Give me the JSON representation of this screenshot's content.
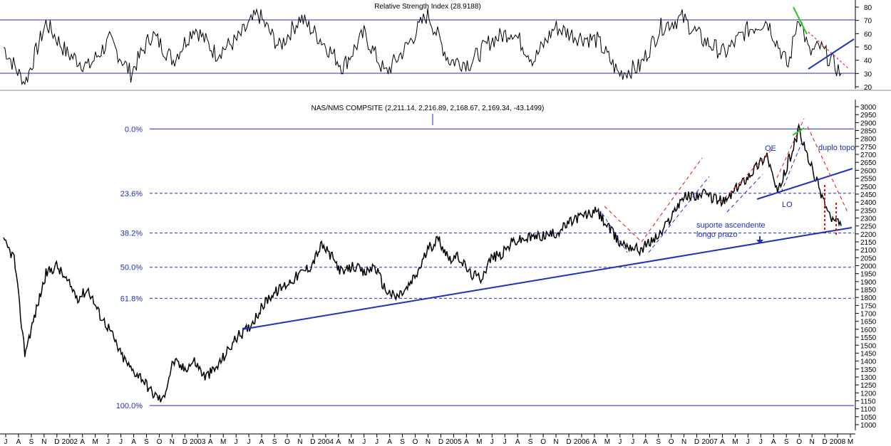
{
  "colors": {
    "blue": "#1f2fbf",
    "red": "#d11",
    "green": "#22cc22",
    "price": "#000000"
  },
  "chart_data": [
    {
      "type": "line",
      "title": "Relative Strength Index (28.9188)",
      "ylim": [
        10,
        85
      ],
      "yticks": [
        80,
        70,
        60,
        50,
        40,
        30,
        20
      ],
      "hlines": [
        70,
        30
      ],
      "grid": false,
      "series": [
        {
          "x": [
            "2001-07",
            "2001-09",
            "2001-11",
            "2002-01",
            "2002-03",
            "2002-05",
            "2002-07",
            "2002-09",
            "2002-11",
            "2003-01",
            "2003-03",
            "2003-05",
            "2003-07",
            "2003-09",
            "2003-11",
            "2004-01",
            "2004-03",
            "2004-05",
            "2004-07",
            "2004-09",
            "2004-11",
            "2005-01",
            "2005-03",
            "2005-05",
            "2005-07",
            "2005-09",
            "2005-11",
            "2006-01",
            "2006-03",
            "2006-05",
            "2006-07",
            "2006-09",
            "2006-11",
            "2007-01",
            "2007-03",
            "2007-05",
            "2007-07",
            "2007-09",
            "2007-10",
            "2007-11",
            "2007-12",
            "2008-01",
            "2008-02"
          ],
          "values": [
            50,
            22,
            68,
            45,
            35,
            55,
            30,
            60,
            40,
            65,
            45,
            55,
            75,
            50,
            72,
            55,
            35,
            60,
            30,
            50,
            75,
            40,
            38,
            55,
            62,
            40,
            65,
            58,
            55,
            30,
            35,
            65,
            72,
            55,
            45,
            62,
            70,
            35,
            75,
            45,
            50,
            40,
            30
          ]
        }
      ]
    },
    {
      "type": "line",
      "title": "NAS/NMS COMPSITE (2,211.14, 2,216.89, 2,168.67, 2,169.34, -43.1499)",
      "ylim": [
        950,
        3000
      ],
      "yticks": [
        3000,
        2950,
        2900,
        2850,
        2800,
        2750,
        2700,
        2650,
        2600,
        2550,
        2500,
        2450,
        2400,
        2350,
        2300,
        2250,
        2200,
        2150,
        2100,
        2050,
        2000,
        1950,
        1900,
        1850,
        1800,
        1750,
        1700,
        1650,
        1600,
        1550,
        1500,
        1450,
        1400,
        1350,
        1300,
        1250,
        1200,
        1150,
        1100,
        1050,
        1000
      ],
      "xticks": [
        "J",
        "A",
        "S",
        "N",
        "D",
        "2002",
        "A",
        "M",
        "J",
        "J",
        "A",
        "S",
        "O",
        "N",
        "D",
        "2003",
        "A",
        "M",
        "J",
        "J",
        "A",
        "S",
        "O",
        "N",
        "D",
        "2004",
        "A",
        "M",
        "J",
        "J",
        "A",
        "S",
        "O",
        "N",
        "D",
        "2005",
        "A",
        "M",
        "J",
        "J",
        "A",
        "S",
        "O",
        "N",
        "D",
        "2006",
        "A",
        "M",
        "J",
        "J",
        "A",
        "S",
        "O",
        "N",
        "D",
        "2007",
        "A",
        "M",
        "J",
        "J",
        "A",
        "S",
        "O",
        "N",
        "D",
        "2008",
        "M"
      ],
      "fibonacci": [
        {
          "label": "0.0%",
          "value": 2860
        },
        {
          "label": "23.6%",
          "value": 2455
        },
        {
          "label": "38.2%",
          "value": 2205
        },
        {
          "label": "50.0%",
          "value": 1990
        },
        {
          "label": "61.8%",
          "value": 1795
        },
        {
          "label": "100.0%",
          "value": 1120
        }
      ],
      "series": [
        {
          "x": [
            "2001-07",
            "2001-08",
            "2001-09",
            "2001-10",
            "2001-11",
            "2001-12",
            "2002-01",
            "2002-02",
            "2002-03",
            "2002-04",
            "2002-05",
            "2002-06",
            "2002-07",
            "2002-08",
            "2002-09",
            "2002-10",
            "2002-11",
            "2002-12",
            "2003-01",
            "2003-02",
            "2003-03",
            "2003-04",
            "2003-05",
            "2003-06",
            "2003-07",
            "2003-08",
            "2003-09",
            "2003-10",
            "2003-11",
            "2003-12",
            "2004-01",
            "2004-02",
            "2004-03",
            "2004-04",
            "2004-05",
            "2004-06",
            "2004-07",
            "2004-08",
            "2004-09",
            "2004-10",
            "2004-11",
            "2004-12",
            "2005-01",
            "2005-02",
            "2005-03",
            "2005-04",
            "2005-05",
            "2005-06",
            "2005-07",
            "2005-09",
            "2005-11",
            "2006-01",
            "2006-03",
            "2006-05",
            "2006-07",
            "2006-09",
            "2006-11",
            "2007-01",
            "2007-03",
            "2007-05",
            "2007-07",
            "2007-08",
            "2007-10",
            "2007-11",
            "2008-01",
            "2008-02"
          ],
          "values": [
            2150,
            2050,
            1450,
            1700,
            1950,
            2000,
            1900,
            1800,
            1850,
            1700,
            1600,
            1450,
            1350,
            1300,
            1200,
            1150,
            1400,
            1350,
            1400,
            1300,
            1350,
            1450,
            1550,
            1600,
            1700,
            1800,
            1850,
            1900,
            1950,
            2000,
            2130,
            2050,
            1950,
            2000,
            1950,
            2000,
            1850,
            1800,
            1850,
            1950,
            2100,
            2170,
            2050,
            2050,
            1950,
            1920,
            2050,
            2070,
            2150,
            2180,
            2200,
            2300,
            2340,
            2150,
            2100,
            2200,
            2430,
            2450,
            2400,
            2550,
            2700,
            2450,
            2850,
            2650,
            2300,
            2250
          ]
        }
      ]
    }
  ],
  "annotations": {
    "oe": "OE",
    "lo": "LO",
    "double_top": "duplo topo",
    "support_line1": "suporte ascendente",
    "support_line2": "longo prazo"
  }
}
